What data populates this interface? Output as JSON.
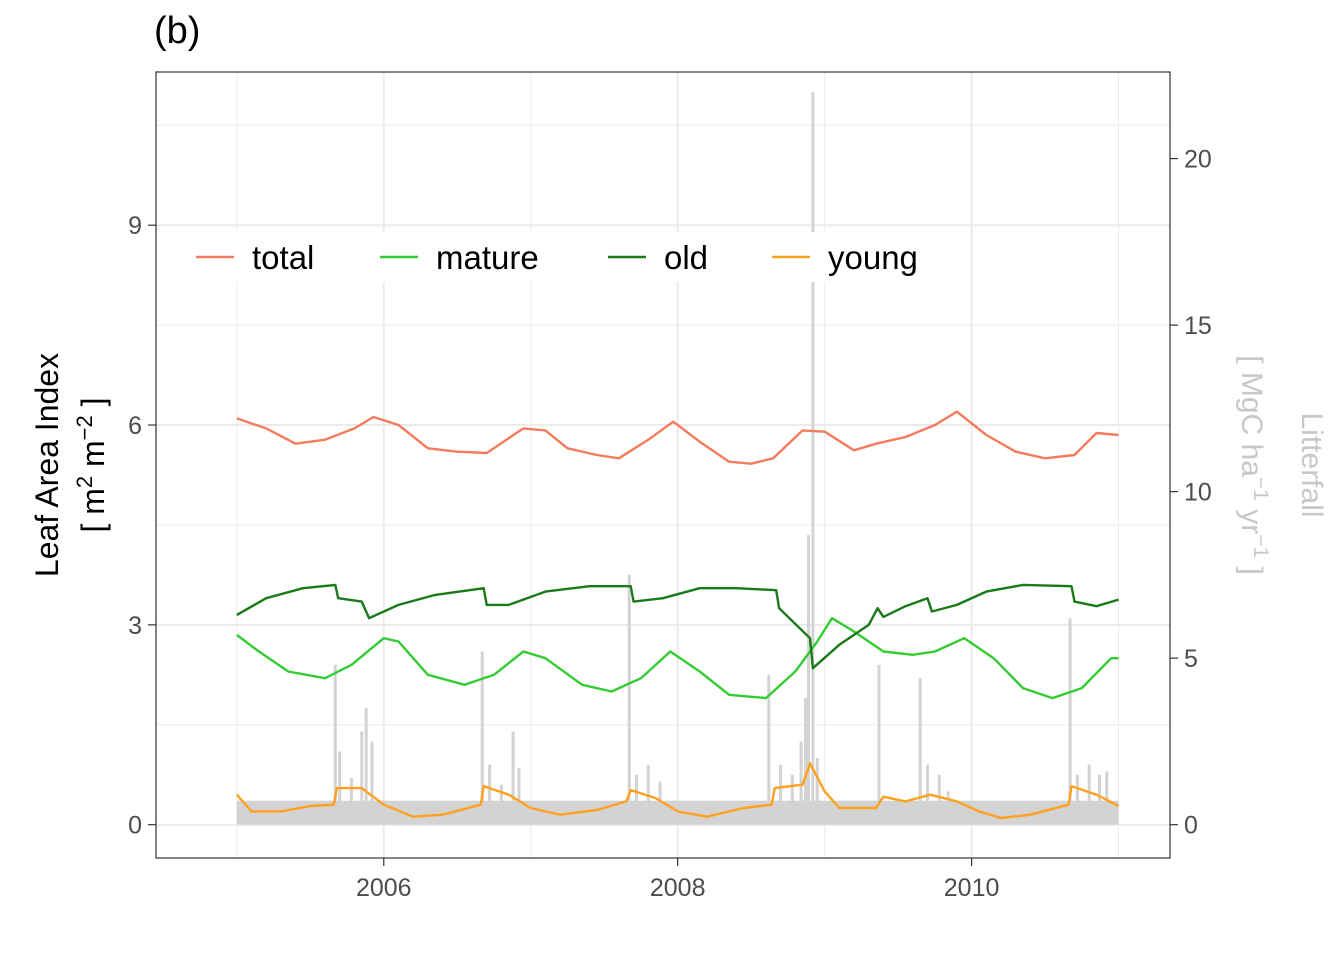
{
  "panel_label": "(b)",
  "y_axis_label": {
    "line1": "Leaf Area Index",
    "line2_open": "[ m",
    "line2_sup1": "2",
    "line2_mid": " m",
    "line2_sup2": "−2",
    "line2_close": " ]"
  },
  "y2_axis_label": {
    "line1": "Litterfall",
    "line2_open": "[ MgC ha",
    "line2_sup1": "−1",
    "line2_mid": " yr",
    "line2_sup2": "−1",
    "line2_close": " ]"
  },
  "colors": {
    "total": "#f47c5d",
    "mature": "#33cc33",
    "old": "#1a7a1a",
    "young": "#ffa01e",
    "litterfall": "#d3d3d3",
    "grid": "#ebebeb",
    "axis_text": "#4d4d4d",
    "y2_text": "#c8c8c8"
  },
  "chart_data": {
    "type": "line",
    "x_range": [
      2004.45,
      2011.35
    ],
    "ylim": [
      -0.5,
      11.3
    ],
    "y2lim": [
      -1,
      22.6
    ],
    "x_ticks": [
      {
        "value": 2006,
        "label": "2006"
      },
      {
        "value": 2008,
        "label": "2008"
      },
      {
        "value": 2010,
        "label": "2010"
      }
    ],
    "y_ticks": [
      {
        "value": 0,
        "label": "0"
      },
      {
        "value": 3,
        "label": "3"
      },
      {
        "value": 6,
        "label": "6"
      },
      {
        "value": 9,
        "label": "9"
      }
    ],
    "y2_ticks": [
      {
        "value": 0,
        "label": "0"
      },
      {
        "value": 5,
        "label": "5"
      },
      {
        "value": 10,
        "label": "10"
      },
      {
        "value": 15,
        "label": "15"
      },
      {
        "value": 20,
        "label": "20"
      }
    ],
    "grid": true,
    "legend": {
      "placement": "top-left, inside, single row",
      "entries": [
        "total",
        "mature",
        "old",
        "young"
      ]
    },
    "series": [
      {
        "name": "total",
        "axis": "left",
        "points": [
          [
            2005.0,
            6.1
          ],
          [
            2005.2,
            5.95
          ],
          [
            2005.4,
            5.72
          ],
          [
            2005.6,
            5.78
          ],
          [
            2005.8,
            5.95
          ],
          [
            2005.93,
            6.12
          ],
          [
            2006.1,
            6.0
          ],
          [
            2006.3,
            5.65
          ],
          [
            2006.5,
            5.6
          ],
          [
            2006.7,
            5.58
          ],
          [
            2006.95,
            5.95
          ],
          [
            2007.1,
            5.92
          ],
          [
            2007.25,
            5.65
          ],
          [
            2007.45,
            5.55
          ],
          [
            2007.6,
            5.5
          ],
          [
            2007.8,
            5.78
          ],
          [
            2007.97,
            6.05
          ],
          [
            2008.15,
            5.75
          ],
          [
            2008.35,
            5.45
          ],
          [
            2008.5,
            5.42
          ],
          [
            2008.65,
            5.5
          ],
          [
            2008.85,
            5.92
          ],
          [
            2009.0,
            5.9
          ],
          [
            2009.2,
            5.62
          ],
          [
            2009.35,
            5.72
          ],
          [
            2009.55,
            5.82
          ],
          [
            2009.75,
            6.0
          ],
          [
            2009.9,
            6.2
          ],
          [
            2010.1,
            5.85
          ],
          [
            2010.3,
            5.6
          ],
          [
            2010.5,
            5.5
          ],
          [
            2010.7,
            5.55
          ],
          [
            2010.85,
            5.88
          ],
          [
            2011.0,
            5.85
          ]
        ]
      },
      {
        "name": "mature",
        "axis": "left",
        "points": [
          [
            2005.0,
            2.85
          ],
          [
            2005.15,
            2.6
          ],
          [
            2005.35,
            2.3
          ],
          [
            2005.6,
            2.2
          ],
          [
            2005.78,
            2.4
          ],
          [
            2006.0,
            2.8
          ],
          [
            2006.1,
            2.75
          ],
          [
            2006.3,
            2.25
          ],
          [
            2006.55,
            2.1
          ],
          [
            2006.75,
            2.25
          ],
          [
            2006.95,
            2.6
          ],
          [
            2007.1,
            2.5
          ],
          [
            2007.35,
            2.1
          ],
          [
            2007.55,
            2.0
          ],
          [
            2007.75,
            2.2
          ],
          [
            2007.95,
            2.6
          ],
          [
            2008.15,
            2.3
          ],
          [
            2008.35,
            1.95
          ],
          [
            2008.6,
            1.9
          ],
          [
            2008.8,
            2.3
          ],
          [
            2008.95,
            2.75
          ],
          [
            2009.05,
            3.1
          ],
          [
            2009.2,
            2.9
          ],
          [
            2009.4,
            2.6
          ],
          [
            2009.6,
            2.55
          ],
          [
            2009.75,
            2.6
          ],
          [
            2009.95,
            2.8
          ],
          [
            2010.15,
            2.5
          ],
          [
            2010.35,
            2.05
          ],
          [
            2010.55,
            1.9
          ],
          [
            2010.75,
            2.05
          ],
          [
            2010.95,
            2.5
          ],
          [
            2011.0,
            2.5
          ]
        ]
      },
      {
        "name": "old",
        "axis": "left",
        "points": [
          [
            2005.0,
            3.15
          ],
          [
            2005.2,
            3.4
          ],
          [
            2005.45,
            3.55
          ],
          [
            2005.67,
            3.6
          ],
          [
            2005.69,
            3.4
          ],
          [
            2005.85,
            3.35
          ],
          [
            2005.9,
            3.1
          ],
          [
            2006.1,
            3.3
          ],
          [
            2006.35,
            3.45
          ],
          [
            2006.68,
            3.55
          ],
          [
            2006.7,
            3.3
          ],
          [
            2006.85,
            3.3
          ],
          [
            2007.1,
            3.5
          ],
          [
            2007.4,
            3.58
          ],
          [
            2007.68,
            3.58
          ],
          [
            2007.7,
            3.35
          ],
          [
            2007.9,
            3.4
          ],
          [
            2008.15,
            3.55
          ],
          [
            2008.4,
            3.55
          ],
          [
            2008.67,
            3.52
          ],
          [
            2008.69,
            3.25
          ],
          [
            2008.9,
            2.8
          ],
          [
            2008.92,
            2.35
          ],
          [
            2009.1,
            2.7
          ],
          [
            2009.3,
            3.0
          ],
          [
            2009.36,
            3.25
          ],
          [
            2009.4,
            3.12
          ],
          [
            2009.55,
            3.28
          ],
          [
            2009.7,
            3.4
          ],
          [
            2009.73,
            3.2
          ],
          [
            2009.9,
            3.3
          ],
          [
            2010.1,
            3.5
          ],
          [
            2010.35,
            3.6
          ],
          [
            2010.68,
            3.58
          ],
          [
            2010.7,
            3.35
          ],
          [
            2010.85,
            3.28
          ],
          [
            2011.0,
            3.38
          ]
        ]
      },
      {
        "name": "young",
        "axis": "left",
        "points": [
          [
            2005.0,
            0.45
          ],
          [
            2005.1,
            0.2
          ],
          [
            2005.3,
            0.2
          ],
          [
            2005.5,
            0.28
          ],
          [
            2005.66,
            0.3
          ],
          [
            2005.68,
            0.55
          ],
          [
            2005.85,
            0.55
          ],
          [
            2006.0,
            0.3
          ],
          [
            2006.2,
            0.12
          ],
          [
            2006.4,
            0.15
          ],
          [
            2006.66,
            0.3
          ],
          [
            2006.68,
            0.58
          ],
          [
            2006.85,
            0.45
          ],
          [
            2007.0,
            0.25
          ],
          [
            2007.2,
            0.15
          ],
          [
            2007.45,
            0.22
          ],
          [
            2007.65,
            0.35
          ],
          [
            2007.68,
            0.52
          ],
          [
            2007.85,
            0.4
          ],
          [
            2008.0,
            0.2
          ],
          [
            2008.2,
            0.12
          ],
          [
            2008.45,
            0.25
          ],
          [
            2008.64,
            0.3
          ],
          [
            2008.66,
            0.55
          ],
          [
            2008.85,
            0.6
          ],
          [
            2008.9,
            0.92
          ],
          [
            2009.0,
            0.5
          ],
          [
            2009.1,
            0.25
          ],
          [
            2009.35,
            0.25
          ],
          [
            2009.4,
            0.42
          ],
          [
            2009.55,
            0.35
          ],
          [
            2009.72,
            0.45
          ],
          [
            2009.9,
            0.35
          ],
          [
            2010.05,
            0.2
          ],
          [
            2010.2,
            0.1
          ],
          [
            2010.4,
            0.15
          ],
          [
            2010.66,
            0.3
          ],
          [
            2010.68,
            0.58
          ],
          [
            2010.85,
            0.45
          ],
          [
            2011.0,
            0.28
          ]
        ]
      },
      {
        "name": "litterfall",
        "axis": "right",
        "type": "bar",
        "baseline": 0.72,
        "spikes": [
          [
            2005.67,
            4.8
          ],
          [
            2005.7,
            2.2
          ],
          [
            2005.78,
            1.4
          ],
          [
            2005.85,
            2.8
          ],
          [
            2005.88,
            3.5
          ],
          [
            2005.92,
            2.5
          ],
          [
            2006.67,
            5.2
          ],
          [
            2006.72,
            1.8
          ],
          [
            2006.8,
            1.2
          ],
          [
            2006.88,
            2.8
          ],
          [
            2006.92,
            1.7
          ],
          [
            2007.67,
            7.5
          ],
          [
            2007.72,
            1.5
          ],
          [
            2007.8,
            1.8
          ],
          [
            2007.88,
            1.3
          ],
          [
            2008.62,
            4.5
          ],
          [
            2008.7,
            1.8
          ],
          [
            2008.78,
            1.5
          ],
          [
            2008.84,
            2.5
          ],
          [
            2008.87,
            3.8
          ],
          [
            2008.89,
            8.7
          ],
          [
            2008.92,
            22.0
          ],
          [
            2008.95,
            2.0
          ],
          [
            2009.37,
            4.8
          ],
          [
            2009.65,
            4.4
          ],
          [
            2009.7,
            1.8
          ],
          [
            2009.78,
            1.5
          ],
          [
            2009.84,
            1.0
          ],
          [
            2010.67,
            6.2
          ],
          [
            2010.72,
            1.5
          ],
          [
            2010.8,
            1.8
          ],
          [
            2010.87,
            1.5
          ],
          [
            2010.92,
            1.6
          ]
        ]
      }
    ]
  }
}
